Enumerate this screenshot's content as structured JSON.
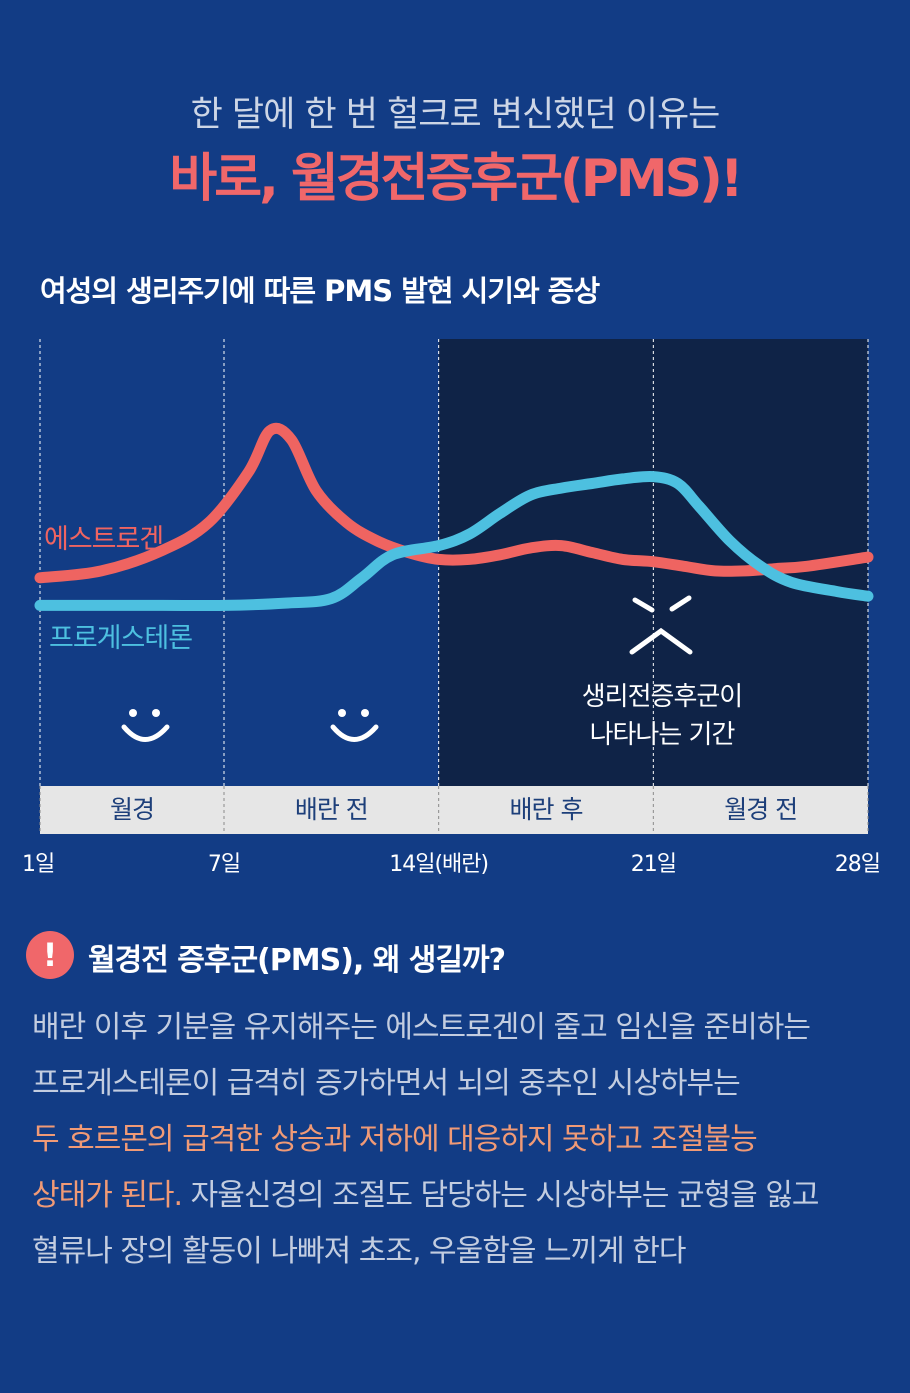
{
  "header": {
    "subtitle": "한 달에 한 번 헐크로 변신했던 이유는",
    "headline": "바로, 월경전증후군(PMS)!"
  },
  "chart_title": "여성의 생리주기에 따른 PMS 발현 시기와 증상",
  "colors": {
    "estrogen": "#ef6461",
    "progesterone": "#4dc0e0",
    "pms_period_bg": "#0f2347",
    "phase_bar_bg": "#e6e6e6",
    "highlight_text": "#f09a76"
  },
  "chart_data": {
    "type": "line",
    "xlabel": "",
    "ylabel": "",
    "x_ticks": [
      {
        "day": 1,
        "label": "1일"
      },
      {
        "day": 7,
        "label": "7일"
      },
      {
        "day": 14,
        "label": "14일(배란)"
      },
      {
        "day": 21,
        "label": "21일"
      },
      {
        "day": 28,
        "label": "28일"
      }
    ],
    "xlim": [
      1,
      28
    ],
    "ylim": [
      0,
      100
    ],
    "series": [
      {
        "name": "에스트로겐",
        "color": "#ef6461",
        "points": [
          [
            1,
            14
          ],
          [
            3,
            17
          ],
          [
            5,
            26
          ],
          [
            6.5,
            38
          ],
          [
            7.8,
            60
          ],
          [
            8.5,
            78
          ],
          [
            9.2,
            74
          ],
          [
            10,
            52
          ],
          [
            11,
            38
          ],
          [
            12,
            30
          ],
          [
            13,
            25
          ],
          [
            14,
            22
          ],
          [
            15,
            22
          ],
          [
            16,
            24
          ],
          [
            17,
            27
          ],
          [
            18,
            28
          ],
          [
            19,
            25
          ],
          [
            20,
            22
          ],
          [
            21,
            21
          ],
          [
            22,
            19
          ],
          [
            23,
            17
          ],
          [
            24,
            17
          ],
          [
            25,
            18
          ],
          [
            26,
            19
          ],
          [
            28,
            23
          ]
        ]
      },
      {
        "name": "프로게스테론",
        "color": "#4dc0e0",
        "points": [
          [
            1,
            2
          ],
          [
            3,
            2
          ],
          [
            5,
            2
          ],
          [
            7,
            2
          ],
          [
            9,
            3
          ],
          [
            10.5,
            5
          ],
          [
            11.5,
            14
          ],
          [
            12.5,
            24
          ],
          [
            14,
            28
          ],
          [
            15,
            33
          ],
          [
            16,
            42
          ],
          [
            17,
            50
          ],
          [
            18,
            53
          ],
          [
            19,
            55
          ],
          [
            20,
            57
          ],
          [
            21,
            58
          ],
          [
            21.8,
            55
          ],
          [
            22.5,
            45
          ],
          [
            23.5,
            30
          ],
          [
            24.5,
            19
          ],
          [
            25.5,
            12
          ],
          [
            27,
            8
          ],
          [
            28,
            6
          ]
        ]
      }
    ],
    "shaded_region": {
      "from_day": 14,
      "to_day": 28
    },
    "phases": [
      "월경",
      "배란 전",
      "배란 후",
      "월경 전"
    ],
    "annotations": [
      "생리전증후군이",
      "나타나는 기간"
    ],
    "faces": [
      "smile",
      "smile",
      "angry"
    ]
  },
  "info": {
    "icon": "exclamation-icon",
    "heading": "월경전 증후군(PMS), 왜 생길까?",
    "lines": [
      [
        {
          "text": "배란 이후 기분을 유지해주는 에스트로겐이 줄고 임신을 준비하는"
        }
      ],
      [
        {
          "text": "프로게스테론이 급격히 증가하면서 뇌의 중추인 시상하부는"
        }
      ],
      [
        {
          "text": "두 호르몬의 급격한 상승과 저하에 대응하지 못하고 조절불능",
          "highlight": true
        }
      ],
      [
        {
          "text": "상태가 된다.",
          "highlight": true
        },
        {
          "text": " 자율신경의 조절도 담당하는 시상하부는 균형을 잃고"
        }
      ],
      [
        {
          "text": "혈류나 장의 활동이 나빠져 초조, 우울함을 느끼게 한다"
        }
      ]
    ]
  }
}
